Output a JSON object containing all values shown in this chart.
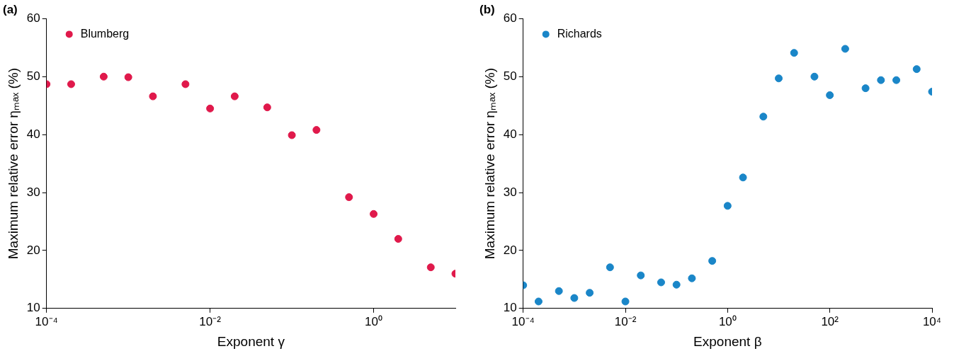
{
  "chart_data": [
    {
      "type": "scatter",
      "title": "(a)",
      "xlabel": "Exponent γ",
      "ylabel": "Maximum relative error ηₘₐₓ (%)",
      "log": "x",
      "grid": false,
      "legend": "top left",
      "marker": "circle",
      "xlim": [
        0.0001,
        10
      ],
      "xticks": [
        {
          "value": 0.0001,
          "label": "10⁻⁴"
        },
        {
          "value": 0.01,
          "label": "10⁻²"
        },
        {
          "value": 1,
          "label": "10⁰"
        }
      ],
      "ylim": [
        10,
        60
      ],
      "yticks": [
        10,
        20,
        30,
        40,
        50,
        60
      ],
      "series": [
        {
          "name": "Blumberg",
          "color": "#e0194b",
          "x": [
            0.0001,
            0.0002,
            0.0005,
            0.001,
            0.002,
            0.005,
            0.01,
            0.02,
            0.05,
            0.1,
            0.2,
            0.5,
            1,
            2,
            5,
            10
          ],
          "values": [
            48.7,
            48.7,
            50.0,
            49.9,
            46.6,
            48.7,
            44.5,
            46.6,
            44.7,
            39.9,
            40.8,
            29.2,
            26.3,
            22.0,
            17.1,
            16.0
          ]
        }
      ]
    },
    {
      "type": "scatter",
      "title": "(b)",
      "xlabel": "Exponent β",
      "ylabel": "Maximum relative error ηₘₐₓ (%)",
      "log": "x",
      "grid": false,
      "legend": "top left",
      "marker": "circle",
      "xlim": [
        0.0001,
        10000
      ],
      "xticks": [
        {
          "value": 0.0001,
          "label": "10⁻⁴"
        },
        {
          "value": 0.01,
          "label": "10⁻²"
        },
        {
          "value": 1,
          "label": "10⁰"
        },
        {
          "value": 100,
          "label": "10²"
        },
        {
          "value": 10000,
          "label": "10⁴"
        }
      ],
      "ylim": [
        10,
        60
      ],
      "yticks": [
        10,
        20,
        30,
        40,
        50,
        60
      ],
      "series": [
        {
          "name": "Richards",
          "color": "#1a86c8",
          "x": [
            0.0001,
            0.0002,
            0.0005,
            0.001,
            0.002,
            0.005,
            0.01,
            0.02,
            0.05,
            0.1,
            0.2,
            0.5,
            1,
            2,
            5,
            10,
            20,
            50,
            100,
            200,
            500,
            1000,
            2000,
            5000,
            10000
          ],
          "values": [
            14.0,
            11.2,
            13.0,
            11.8,
            12.7,
            17.1,
            11.2,
            15.7,
            14.5,
            14.1,
            15.2,
            18.2,
            27.7,
            32.6,
            43.1,
            49.7,
            54.1,
            50.0,
            46.8,
            54.8,
            48.0,
            49.4,
            49.4,
            51.3,
            47.4
          ]
        }
      ]
    }
  ]
}
